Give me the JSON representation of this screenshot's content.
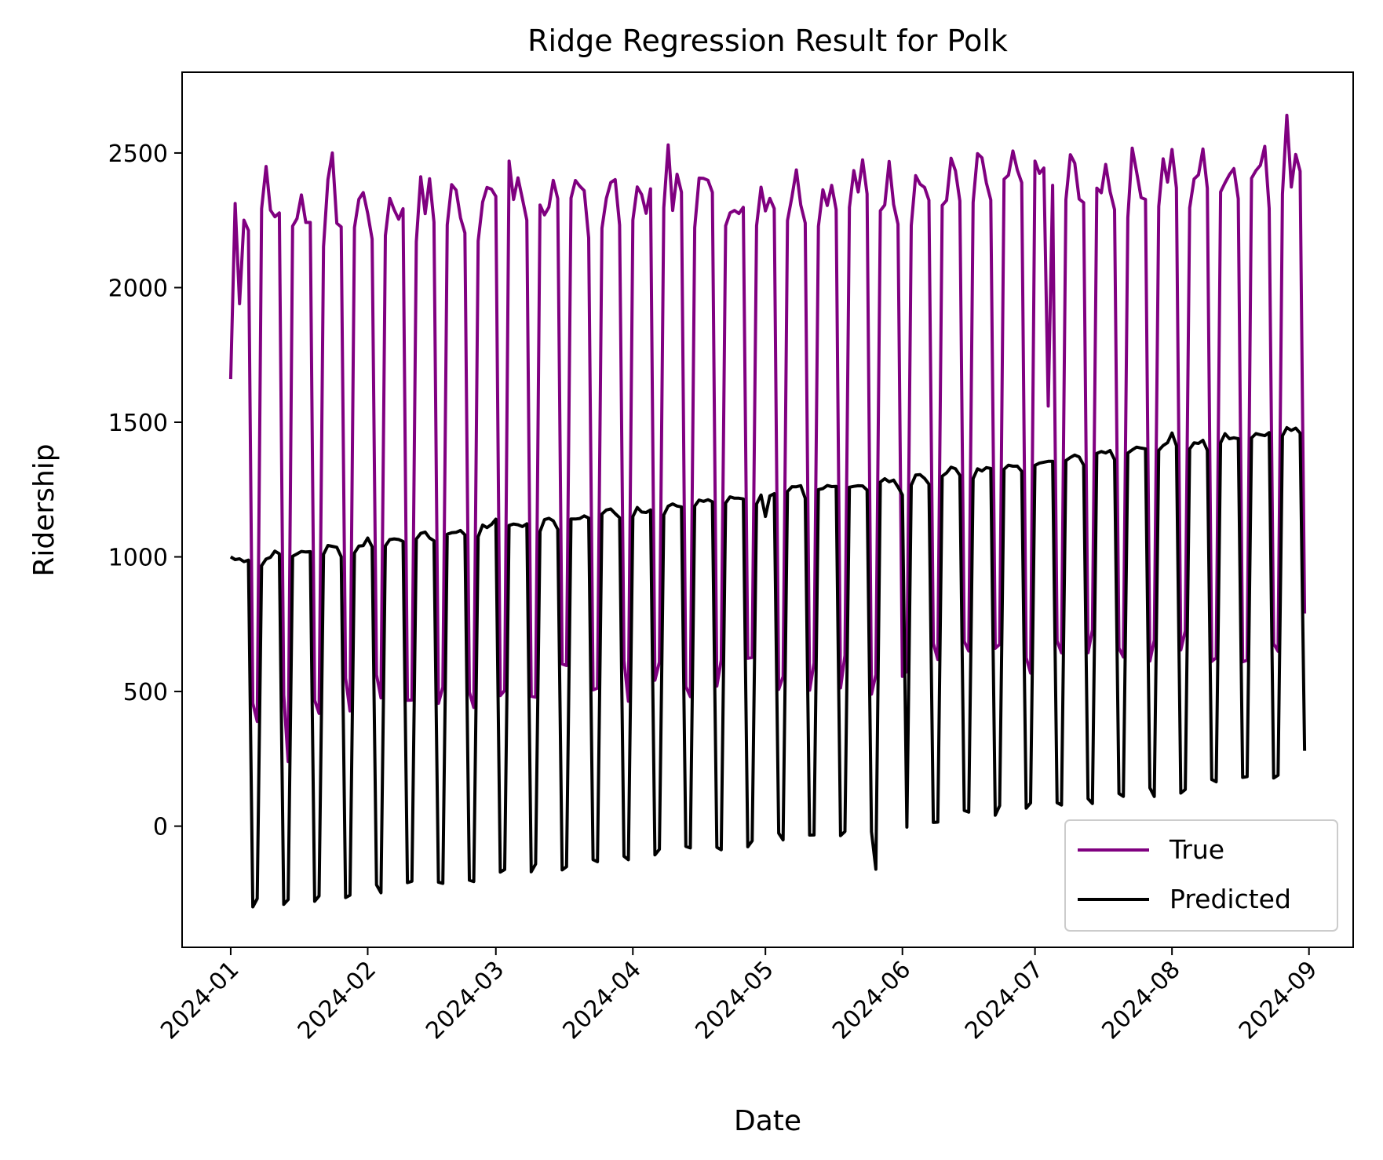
{
  "chart_data": {
    "type": "line",
    "title": "Ridge Regression Result for Polk",
    "xlabel": "Date",
    "ylabel": "Ridership",
    "x_start": "2024-01-01",
    "x_end": "2024-08-31",
    "xlim": [
      "2023-12-21",
      "2024-09-11"
    ],
    "ylim": [
      -450,
      2800
    ],
    "x_ticks": [
      "2024-01",
      "2024-02",
      "2024-03",
      "2024-04",
      "2024-05",
      "2024-06",
      "2024-07",
      "2024-08",
      "2024-09"
    ],
    "y_ticks": [
      0,
      500,
      1000,
      1500,
      2000,
      2500
    ],
    "grid": false,
    "legend_position": "lower-right",
    "series": [
      {
        "name": "True",
        "color": "#800080",
        "weekly_pattern": "weekday high, weekend low",
        "weekday_level_start": 2300,
        "weekday_level_end": 2450,
        "weekend_level_start": 450,
        "weekend_level_end": 700,
        "anchor_values": [
          {
            "x": "2024-01-01",
            "y": 1660
          },
          {
            "x": "2024-01-03",
            "y": 1940
          },
          {
            "x": "2024-01-09",
            "y": 2450
          },
          {
            "x": "2024-01-14",
            "y": 240
          },
          {
            "x": "2024-01-24",
            "y": 2500
          },
          {
            "x": "2024-03-04",
            "y": 2470
          },
          {
            "x": "2024-04-09",
            "y": 2530
          },
          {
            "x": "2024-05-25",
            "y": 490
          },
          {
            "x": "2024-07-01",
            "y": 2470
          },
          {
            "x": "2024-07-04",
            "y": 1560
          },
          {
            "x": "2024-08-27",
            "y": 2640
          },
          {
            "x": "2024-08-31",
            "y": 790
          }
        ]
      },
      {
        "name": "Predicted",
        "color": "#000000",
        "weekly_pattern": "weekday high, weekend low",
        "weekday_level_start": 990,
        "weekday_level_end": 1480,
        "weekend_level_start": -300,
        "weekend_level_end": 200,
        "anchor_values": [
          {
            "x": "2024-01-01",
            "y": 1000
          },
          {
            "x": "2024-01-06",
            "y": -300
          },
          {
            "x": "2024-02-01",
            "y": 1070
          },
          {
            "x": "2024-03-01",
            "y": 1140
          },
          {
            "x": "2024-04-01",
            "y": 1150
          },
          {
            "x": "2024-05-01",
            "y": 1150
          },
          {
            "x": "2024-05-26",
            "y": -160
          },
          {
            "x": "2024-06-01",
            "y": 1230
          },
          {
            "x": "2024-07-01",
            "y": 1340
          },
          {
            "x": "2024-08-01",
            "y": 1460
          },
          {
            "x": "2024-08-27",
            "y": 1480
          },
          {
            "x": "2024-08-31",
            "y": 280
          }
        ]
      }
    ]
  }
}
